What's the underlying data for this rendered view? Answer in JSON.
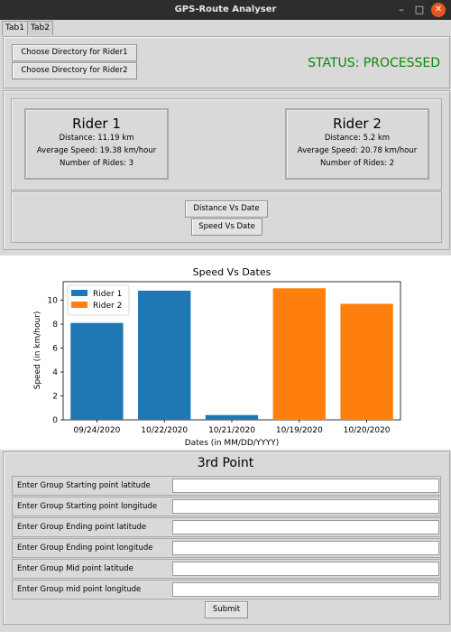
{
  "window": {
    "title": "GPS-Route Analyser",
    "minimize": "–",
    "maximize": "□",
    "close": "✕"
  },
  "tabs": [
    {
      "label": "Tab1"
    },
    {
      "label": "Tab2"
    }
  ],
  "directory": {
    "rider1_button": "Choose Directory for Rider1",
    "rider2_button": "Choose Directory for Rider2",
    "status": "STATUS: PROCESSED",
    "status_color": "#0a8a0a"
  },
  "riders": [
    {
      "name": "Rider 1",
      "distance": "Distance: 11.19 km",
      "speed": "Average Speed: 19.38 km/hour",
      "rides": "Number of Rides: 3"
    },
    {
      "name": "Rider 2",
      "distance": "Distance: 5.2 km",
      "speed": "Average Speed: 20.78 km/hour",
      "rides": "Number of Rides: 2"
    }
  ],
  "graph_buttons": {
    "distance": "Distance Vs Date",
    "speed": "Speed Vs Date"
  },
  "chart_data": {
    "type": "bar",
    "title": "Speed Vs Dates",
    "xlabel": "Dates (in MM/DD/YYYY)",
    "ylabel": "Speed (in km/hour)",
    "categories": [
      "09/24/2020",
      "10/22/2020",
      "10/21/2020",
      "10/19/2020",
      "10/20/2020"
    ],
    "series": [
      {
        "name": "Rider 1",
        "color": "#1f77b4",
        "values": [
          8.1,
          10.8,
          0.4,
          null,
          null
        ]
      },
      {
        "name": "Rider 2",
        "color": "#ff7f0e",
        "values": [
          null,
          null,
          null,
          11.0,
          9.7
        ]
      }
    ],
    "yticks": [
      "0",
      "2",
      "4",
      "6",
      "8",
      "10"
    ],
    "ylim": [
      0,
      11.55
    ],
    "grid": false,
    "legend": "top-left"
  },
  "form": {
    "title": "3rd Point",
    "fields": [
      {
        "label": "Enter Group Starting point latitude",
        "value": ""
      },
      {
        "label": "Enter Group Starting point longitude",
        "value": ""
      },
      {
        "label": "Enter Group Ending point latitude",
        "value": ""
      },
      {
        "label": "Enter Group Ending point longitude",
        "value": ""
      },
      {
        "label": "Enter Group Mid point latitude",
        "value": ""
      },
      {
        "label": "Enter Group mid point longitude",
        "value": ""
      }
    ],
    "submit": "Submit"
  }
}
